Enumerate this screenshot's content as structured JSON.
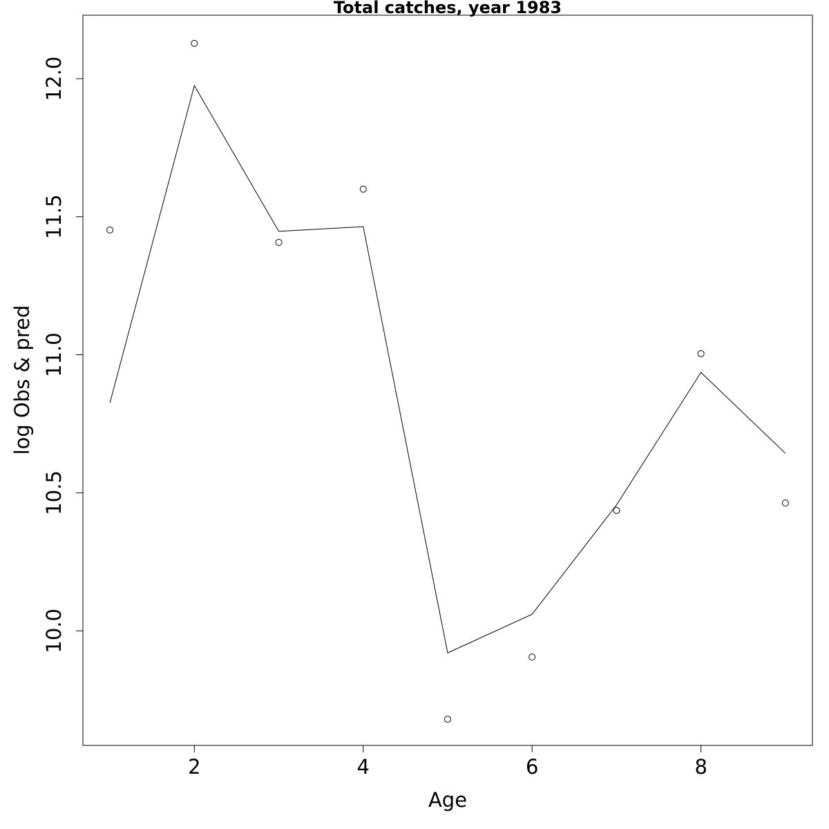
{
  "chart_data": {
    "type": "line",
    "title": "Total catches, year 1983",
    "x_label": "Age",
    "y_label": "log Obs & pred",
    "x": [
      1,
      2,
      3,
      4,
      5,
      6,
      7,
      8,
      9
    ],
    "series": [
      {
        "style": "points",
        "color": "#000000",
        "values": [
          11.452,
          12.128,
          11.407,
          11.6,
          9.68,
          9.905,
          10.436,
          11.004,
          10.463
        ]
      },
      {
        "style": "line",
        "color": "#000000",
        "values": [
          10.826,
          11.975,
          11.447,
          11.464,
          9.92,
          10.06,
          10.456,
          10.936,
          10.643
        ]
      }
    ],
    "xlim": [
      0.68,
      9.32
    ],
    "xticks": [
      2,
      4,
      6,
      8
    ],
    "ylim": [
      9.585,
      12.23
    ],
    "yticks": [
      {
        "value": 10,
        "label": "10.0"
      },
      10.5,
      {
        "value": 11,
        "label": "11.0"
      },
      11.5,
      {
        "value": 12,
        "label": "12.0"
      }
    ],
    "grid": false
  }
}
